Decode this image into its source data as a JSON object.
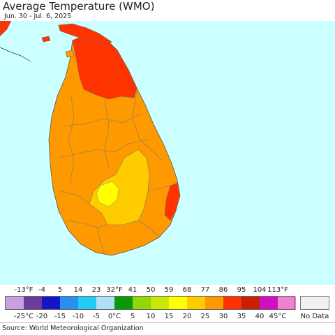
{
  "header": {
    "title": "Average Temperature (WMO)",
    "subtitle": "Jun. 30 - Jul. 6, 2025"
  },
  "map": {
    "sea_color": "#ccffff",
    "region_colors": {
      "north_peninsula": "#ff3300",
      "lowland": "#ff9900",
      "hill_country": "#ffcc00",
      "highland_peak": "#ffff00",
      "east_coast_patch": "#ff3300",
      "india_tip": "#ff3300"
    }
  },
  "legend": {
    "fahrenheit_labels": [
      "-13°F",
      "-4",
      "5",
      "14",
      "23",
      "32°F",
      "41",
      "50",
      "59",
      "68",
      "77",
      "86",
      "95",
      "104",
      "113°F"
    ],
    "celsius_labels": [
      "-25°C",
      "-20",
      "-15",
      "-10",
      "-5",
      "0°C",
      "5",
      "10",
      "15",
      "20",
      "25",
      "30",
      "35",
      "40",
      "45°C"
    ],
    "colors": [
      "#c8a0e0",
      "#6a3d9a",
      "#1515c8",
      "#2a8ff0",
      "#22ccf5",
      "#b0e0f5",
      "#089a08",
      "#90d808",
      "#c8e808",
      "#ffff00",
      "#ffcc00",
      "#ff9900",
      "#ff3300",
      "#c82000",
      "#d010c0",
      "#f080d0"
    ],
    "no_data_label": "No Data",
    "no_data_color": "#f2f0f0"
  },
  "footer": {
    "source": "Source: World Meteorological Organization"
  }
}
